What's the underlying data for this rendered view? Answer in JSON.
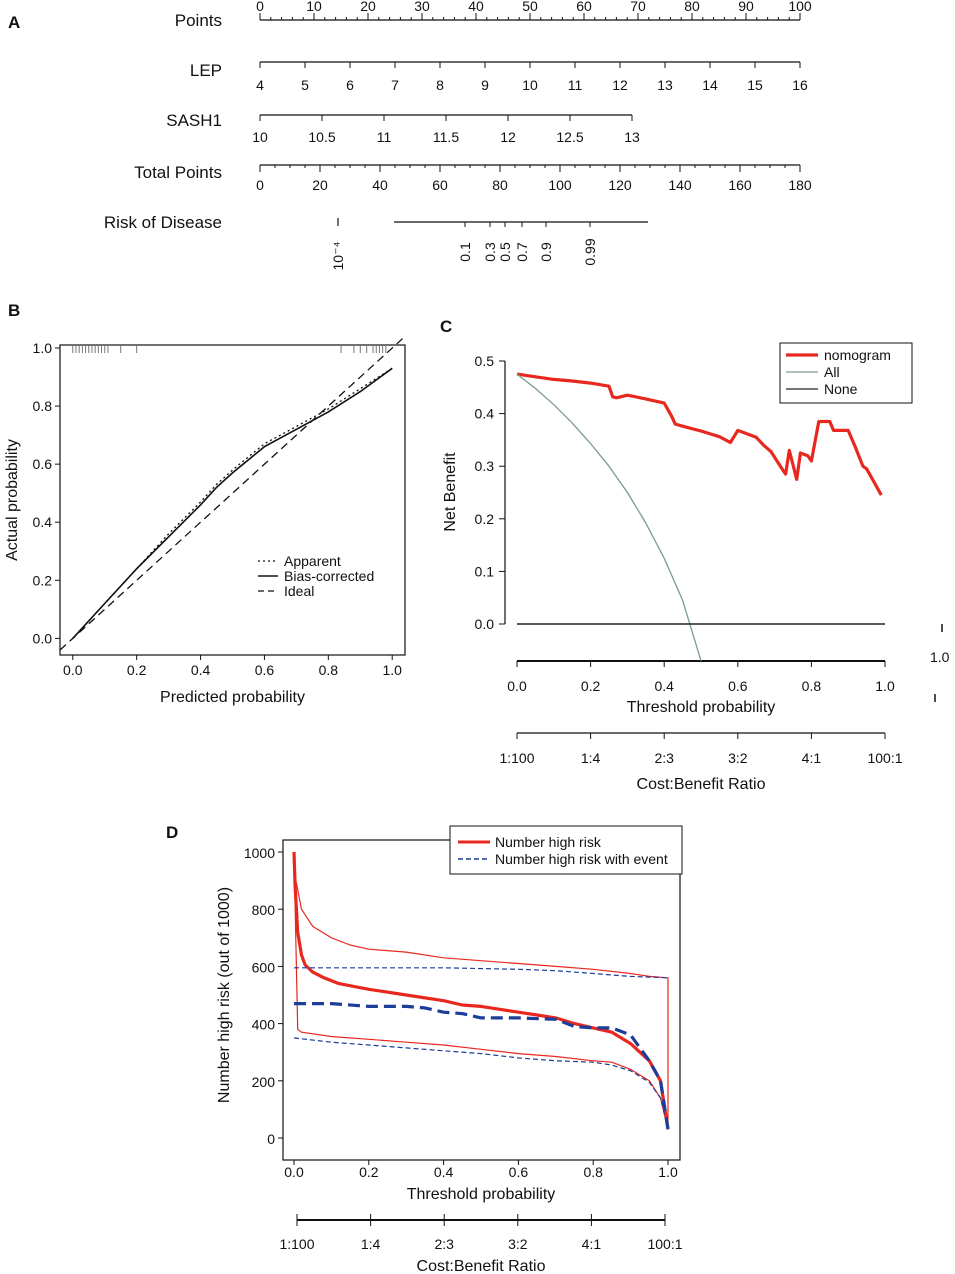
{
  "panels": {
    "A": {
      "label": "A",
      "rows": [
        {
          "name": "Points",
          "ticks": [
            "0",
            "10",
            "20",
            "30",
            "40",
            "50",
            "60",
            "70",
            "80",
            "90",
            "100"
          ]
        },
        {
          "name": "LEP",
          "ticks": [
            "4",
            "5",
            "6",
            "7",
            "8",
            "9",
            "10",
            "11",
            "12",
            "13",
            "14",
            "15",
            "16"
          ]
        },
        {
          "name": "SASH1",
          "ticks": [
            "10",
            "10.5",
            "11",
            "11.5",
            "12",
            "12.5",
            "13"
          ]
        },
        {
          "name": "Total Points",
          "ticks": [
            "0",
            "20",
            "40",
            "60",
            "80",
            "100",
            "120",
            "140",
            "160",
            "180"
          ]
        },
        {
          "name": "Risk of Disease",
          "ticks": [
            "10⁻⁴",
            "0.1",
            "0.3",
            "0.5",
            "0.7",
            "0.9",
            "0.99"
          ]
        }
      ]
    },
    "B": {
      "label": "B"
    },
    "C": {
      "label": "C",
      "extra_tick": "1.0"
    },
    "D": {
      "label": "D"
    }
  },
  "chart_data": [
    {
      "id": "B",
      "type": "line",
      "xlabel": "Predicted probability",
      "ylabel": "Actual probability",
      "xlim": [
        -0.04,
        1.04
      ],
      "ylim": [
        -0.04,
        1.0
      ],
      "xticks": [
        0.0,
        0.2,
        0.4,
        0.6,
        0.8,
        1.0
      ],
      "xtick_labels": [
        "0.0",
        "0.2",
        "0.4",
        "0.6",
        "0.8",
        "1.0"
      ],
      "yticks": [
        0.0,
        0.2,
        0.4,
        0.6,
        0.8,
        1.0
      ],
      "ytick_labels": [
        "0.0",
        "0.2",
        "0.4",
        "0.6",
        "0.8",
        "1.0"
      ],
      "legend": [
        "Apparent",
        "Bias-corrected",
        "Ideal"
      ],
      "series": [
        {
          "name": "Apparent",
          "style": "dotted",
          "x": [
            0,
            0.1,
            0.2,
            0.3,
            0.4,
            0.45,
            0.5,
            0.6,
            0.7,
            0.8,
            0.9,
            1.0
          ],
          "y": [
            0,
            0.12,
            0.24,
            0.36,
            0.47,
            0.53,
            0.58,
            0.67,
            0.73,
            0.79,
            0.86,
            0.93
          ]
        },
        {
          "name": "Bias-corrected",
          "style": "solid",
          "x": [
            0,
            0.1,
            0.2,
            0.3,
            0.4,
            0.45,
            0.5,
            0.6,
            0.7,
            0.8,
            0.9,
            1.0
          ],
          "y": [
            0,
            0.12,
            0.24,
            0.35,
            0.46,
            0.52,
            0.57,
            0.66,
            0.72,
            0.78,
            0.85,
            0.93
          ]
        },
        {
          "name": "Ideal",
          "style": "dashed",
          "x": [
            -0.04,
            1.04
          ],
          "y": [
            -0.04,
            1.04
          ]
        }
      ],
      "rug_x": [
        0.0,
        0.01,
        0.02,
        0.03,
        0.04,
        0.05,
        0.06,
        0.07,
        0.08,
        0.09,
        0.1,
        0.11,
        0.15,
        0.2,
        0.84,
        0.88,
        0.9,
        0.92,
        0.94,
        0.95,
        0.96,
        0.97,
        0.98
      ]
    },
    {
      "id": "C",
      "type": "line",
      "xlabel": "Threshold probability",
      "ylabel": "Net Benefit",
      "xlim": [
        0.0,
        1.0
      ],
      "ylim": [
        -0.07,
        0.52
      ],
      "xticks": [
        0.0,
        0.2,
        0.4,
        0.6,
        0.8,
        1.0
      ],
      "xtick_labels": [
        "0.0",
        "0.2",
        "0.4",
        "0.6",
        "0.8",
        "1.0"
      ],
      "yticks": [
        0.0,
        0.1,
        0.2,
        0.3,
        0.4,
        0.5
      ],
      "ytick_labels": [
        "0.0",
        "0.1",
        "0.2",
        "0.3",
        "0.4",
        "0.5"
      ],
      "ratio_label": "Cost:Benefit Ratio",
      "ratio_ticks": [
        "1:100",
        "1:4",
        "2:3",
        "3:2",
        "4:1",
        "100:1"
      ],
      "legend": [
        "nomogram",
        "All",
        "None"
      ],
      "series": [
        {
          "name": "nomogram",
          "color": "#e8281e",
          "x": [
            0,
            0.05,
            0.1,
            0.15,
            0.2,
            0.25,
            0.26,
            0.27,
            0.3,
            0.35,
            0.4,
            0.42,
            0.43,
            0.45,
            0.5,
            0.55,
            0.58,
            0.6,
            0.65,
            0.67,
            0.69,
            0.72,
            0.73,
            0.74,
            0.76,
            0.77,
            0.79,
            0.8,
            0.82,
            0.83,
            0.85,
            0.86,
            0.88,
            0.9,
            0.92,
            0.94,
            0.95,
            0.97,
            0.99
          ],
          "y": [
            0.475,
            0.47,
            0.465,
            0.462,
            0.458,
            0.452,
            0.432,
            0.43,
            0.435,
            0.428,
            0.42,
            0.395,
            0.38,
            0.376,
            0.367,
            0.356,
            0.345,
            0.368,
            0.355,
            0.34,
            0.328,
            0.295,
            0.285,
            0.33,
            0.275,
            0.325,
            0.32,
            0.31,
            0.385,
            0.385,
            0.385,
            0.368,
            0.368,
            0.368,
            0.335,
            0.3,
            0.295,
            0.27,
            0.245
          ]
        },
        {
          "name": "All",
          "color": "#7a9a93",
          "x": [
            0,
            0.05,
            0.1,
            0.15,
            0.2,
            0.25,
            0.3,
            0.35,
            0.4,
            0.45,
            0.5
          ],
          "y": [
            0.475,
            0.448,
            0.417,
            0.382,
            0.343,
            0.3,
            0.25,
            0.192,
            0.125,
            0.045,
            -0.07
          ]
        },
        {
          "name": "None",
          "color": "#222222",
          "x": [
            0,
            1.0
          ],
          "y": [
            0,
            0
          ]
        }
      ]
    },
    {
      "id": "D",
      "type": "line",
      "xlabel": "Threshold probability",
      "ylabel": "Number high risk (out of 1000)",
      "xlim": [
        -0.03,
        1.03
      ],
      "ylim": [
        0,
        1000
      ],
      "xticks": [
        0.0,
        0.2,
        0.4,
        0.6,
        0.8,
        1.0
      ],
      "xtick_labels": [
        "0.0",
        "0.2",
        "0.4",
        "0.6",
        "0.8",
        "1.0"
      ],
      "yticks": [
        0,
        200,
        400,
        600,
        800,
        1000
      ],
      "ytick_labels": [
        "0",
        "200",
        "400",
        "600",
        "800",
        "1000"
      ],
      "ratio_label": "Cost:Benefit Ratio",
      "ratio_ticks": [
        "1:100",
        "1:4",
        "2:3",
        "3:2",
        "4:1",
        "100:1"
      ],
      "legend": [
        "Number high risk",
        "Number high risk with event"
      ],
      "series": [
        {
          "name": "Number high risk",
          "color": "#e8281e",
          "style": "solid",
          "width": 3.2,
          "x": [
            0,
            0.003,
            0.01,
            0.02,
            0.03,
            0.05,
            0.08,
            0.12,
            0.2,
            0.3,
            0.4,
            0.45,
            0.5,
            0.55,
            0.6,
            0.65,
            0.7,
            0.75,
            0.8,
            0.85,
            0.9,
            0.95,
            0.98,
            1.0
          ],
          "y": [
            1000,
            880,
            720,
            640,
            605,
            580,
            560,
            540,
            520,
            500,
            480,
            465,
            460,
            450,
            440,
            430,
            420,
            400,
            385,
            370,
            330,
            270,
            200,
            30
          ]
        },
        {
          "name": "Number high risk upper",
          "color": "#e8281e",
          "style": "solid",
          "width": 1.2,
          "x": [
            0,
            0.005,
            0.02,
            0.05,
            0.1,
            0.15,
            0.2,
            0.3,
            0.4,
            0.5,
            0.6,
            0.7,
            0.8,
            0.9,
            0.95,
            1.0,
            1.0
          ],
          "y": [
            1000,
            900,
            800,
            740,
            700,
            675,
            660,
            650,
            630,
            620,
            610,
            600,
            590,
            575,
            565,
            560,
            40
          ]
        },
        {
          "name": "Number high risk lower",
          "color": "#e8281e",
          "style": "solid",
          "width": 1.2,
          "x": [
            0,
            0.01,
            0.02,
            0.1,
            0.2,
            0.3,
            0.4,
            0.5,
            0.6,
            0.7,
            0.8,
            0.85,
            0.9,
            0.95,
            0.98,
            1.0
          ],
          "y": [
            1000,
            380,
            370,
            355,
            345,
            335,
            325,
            310,
            295,
            285,
            270,
            265,
            240,
            200,
            140,
            30
          ]
        },
        {
          "name": "Number high risk with event",
          "color": "#1c3e99",
          "style": "dashed",
          "width": 3.2,
          "x": [
            0,
            0.1,
            0.2,
            0.3,
            0.35,
            0.4,
            0.45,
            0.5,
            0.6,
            0.7,
            0.75,
            0.8,
            0.85,
            0.9,
            0.95,
            0.98,
            1.0
          ],
          "y": [
            470,
            470,
            460,
            460,
            455,
            440,
            435,
            420,
            420,
            415,
            390,
            385,
            385,
            360,
            270,
            200,
            30
          ]
        },
        {
          "name": "Number high risk with event upper",
          "color": "#1c3e99",
          "style": "dashed",
          "width": 1.2,
          "x": [
            0,
            0.2,
            0.4,
            0.6,
            0.7,
            0.8,
            0.9,
            1.0
          ],
          "y": [
            595,
            595,
            595,
            590,
            585,
            575,
            565,
            560
          ]
        },
        {
          "name": "Number high risk with event lower",
          "color": "#1c3e99",
          "style": "dashed",
          "width": 1.2,
          "x": [
            0,
            0.1,
            0.2,
            0.3,
            0.4,
            0.5,
            0.6,
            0.7,
            0.8,
            0.85,
            0.9,
            0.95,
            0.98,
            1.0
          ],
          "y": [
            350,
            335,
            325,
            315,
            305,
            295,
            280,
            270,
            265,
            255,
            235,
            195,
            140,
            30
          ]
        }
      ]
    }
  ]
}
